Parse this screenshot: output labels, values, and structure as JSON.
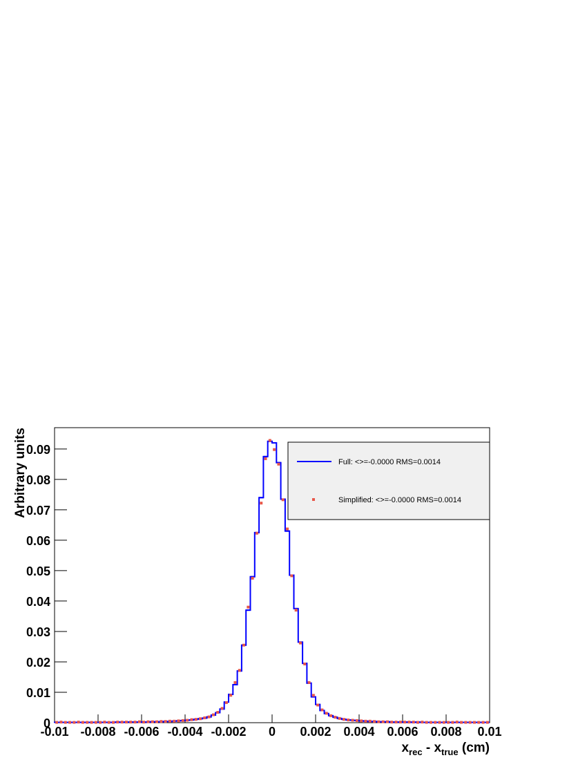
{
  "chart_data": {
    "type": "histogram",
    "y_label": "Arbitrary units",
    "x_label_parts": [
      {
        "text": "x",
        "sub": false
      },
      {
        "text": "rec",
        "sub": true
      },
      {
        "text": " - x",
        "sub": false
      },
      {
        "text": "true",
        "sub": true
      },
      {
        "text": " (cm)",
        "sub": false
      }
    ],
    "bins": [
      -0.01,
      -0.0098,
      -0.0096,
      -0.0094,
      -0.0092,
      -0.009,
      -0.0088,
      -0.0086,
      -0.0084,
      -0.0082,
      -0.008,
      -0.0078,
      -0.0076,
      -0.0074,
      -0.0072,
      -0.007,
      -0.0068,
      -0.0066,
      -0.0064,
      -0.0062,
      -0.006,
      -0.0058,
      -0.0056,
      -0.0054,
      -0.0052,
      -0.005,
      -0.0048,
      -0.0046,
      -0.0044,
      -0.0042,
      -0.004,
      -0.0038,
      -0.0036,
      -0.0034,
      -0.0032,
      -0.003,
      -0.0028,
      -0.0026,
      -0.0024,
      -0.0022,
      -0.002,
      -0.0018,
      -0.0016,
      -0.0014,
      -0.0012,
      -0.001,
      -0.0008,
      -0.0006,
      -0.0004,
      -0.0002,
      0,
      0.0002,
      0.0004,
      0.0006,
      0.0008,
      0.001,
      0.0012,
      0.0014,
      0.0016,
      0.0018,
      0.002,
      0.0022,
      0.0024,
      0.0026,
      0.0028,
      0.003,
      0.0032,
      0.0034,
      0.0036,
      0.0038,
      0.004,
      0.0042,
      0.0044,
      0.0046,
      0.0048,
      0.005,
      0.0052,
      0.0054,
      0.0056,
      0.0058,
      0.006,
      0.0062,
      0.0064,
      0.0066,
      0.0068,
      0.007,
      0.0072,
      0.0074,
      0.0076,
      0.0078,
      0.008,
      0.0082,
      0.0084,
      0.0086,
      0.0088,
      0.009,
      0.0092,
      0.0094,
      0.0096,
      0.0098,
      0.01
    ],
    "series": [
      {
        "name": "Full: <>=-0.0000 RMS=0.0014",
        "color": "#0000ff",
        "style": "step",
        "values": [
          0.0001,
          0.0001,
          0.0001,
          0.0001,
          0.0001,
          0.0001,
          0.0001,
          0.0001,
          0.0001,
          0.0001,
          0.0001,
          0.0001,
          0.0001,
          0.0001,
          0.0002,
          0.0001,
          0.0002,
          0.0002,
          0.0002,
          0.0002,
          0.0002,
          0.0002,
          0.0003,
          0.0003,
          0.0003,
          0.0004,
          0.0004,
          0.0005,
          0.0006,
          0.0007,
          0.0008,
          0.0009,
          0.0011,
          0.0013,
          0.0015,
          0.0019,
          0.0025,
          0.0033,
          0.0045,
          0.0068,
          0.0093,
          0.0125,
          0.017,
          0.0255,
          0.037,
          0.048,
          0.0625,
          0.074,
          0.0875,
          0.0925,
          0.092,
          0.0855,
          0.0735,
          0.063,
          0.0485,
          0.0375,
          0.0265,
          0.0195,
          0.013,
          0.0085,
          0.006,
          0.004,
          0.003,
          0.0023,
          0.0018,
          0.0014,
          0.0011,
          0.0009,
          0.0008,
          0.0007,
          0.0006,
          0.0005,
          0.0004,
          0.0004,
          0.0003,
          0.0003,
          0.0003,
          0.0002,
          0.0002,
          0.0002,
          0.0002,
          0.0002,
          0.0001,
          0.0002,
          0.0001,
          0.0001,
          0.0001,
          0.0001,
          0.0001,
          0.0001,
          0.0001,
          0.0001,
          0.0001,
          0.0001,
          0.0001,
          0.0001,
          0.0001,
          0.0001,
          0.0001,
          0.0001
        ]
      },
      {
        "name": "Simplified: <>=-0.0000 RMS=0.0014",
        "color": "#e8574a",
        "style": "markers",
        "values": [
          0.0001,
          0.0002,
          0.0001,
          0.0001,
          0.0001,
          0.0002,
          0.0001,
          0.0001,
          0.0001,
          0.0001,
          0.0001,
          0.0002,
          0.0001,
          0.0001,
          0.0002,
          0.0002,
          0.0002,
          0.0002,
          0.0002,
          0.0003,
          0.0002,
          0.0003,
          0.0003,
          0.0003,
          0.0004,
          0.0004,
          0.0005,
          0.0005,
          0.0006,
          0.0007,
          0.0008,
          0.001,
          0.0011,
          0.0013,
          0.0016,
          0.0019,
          0.0026,
          0.0034,
          0.0047,
          0.0066,
          0.009,
          0.0132,
          0.0172,
          0.0255,
          0.038,
          0.0475,
          0.0623,
          0.0722,
          0.0868,
          0.0928,
          0.0898,
          0.085,
          0.0733,
          0.0637,
          0.0483,
          0.037,
          0.0262,
          0.0193,
          0.0132,
          0.009,
          0.0058,
          0.0042,
          0.0031,
          0.0023,
          0.0018,
          0.0014,
          0.0011,
          0.0009,
          0.0008,
          0.0007,
          0.0006,
          0.0005,
          0.0005,
          0.0004,
          0.0003,
          0.0003,
          0.0003,
          0.0002,
          0.0002,
          0.0002,
          0.0002,
          0.0002,
          0.0002,
          0.0001,
          0.0002,
          0.0001,
          0.0001,
          0.0001,
          0.0001,
          0.0001,
          0.0001,
          0.0001,
          0.0002,
          0.0001,
          0.0001,
          0.0001,
          0.0001,
          0.0001,
          0.0001,
          0.0001
        ]
      }
    ],
    "xlim": [
      -0.01,
      0.01
    ],
    "ylim": [
      0,
      0.097
    ],
    "xticks": [
      -0.01,
      -0.008,
      -0.006,
      -0.004,
      -0.002,
      0,
      0.002,
      0.004,
      0.006,
      0.008,
      0.01
    ],
    "yticks": [
      0,
      0.01,
      0.02,
      0.03,
      0.04,
      0.05,
      0.06,
      0.07,
      0.08,
      0.09
    ],
    "legend_position": "top-right",
    "grid": false
  }
}
